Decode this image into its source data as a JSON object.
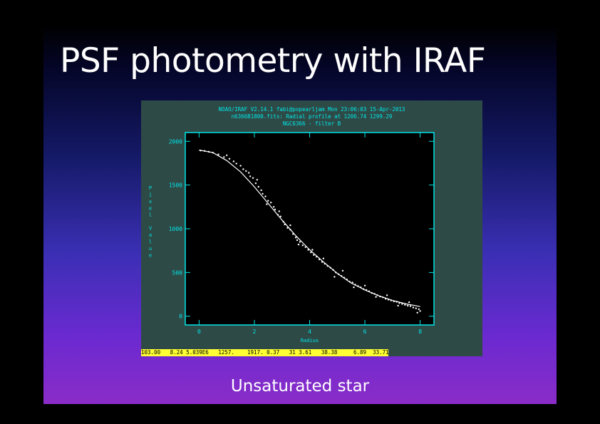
{
  "slide": {
    "title": "PSF photometry with IRAF",
    "caption": "Unsaturated star"
  },
  "iraf": {
    "header_line1": "NOAO/IRAF V2.14.1 fabi@popearljam Mon 23:06:03 15-Apr-2013",
    "header_line2": "n6366B1800.fits: Radial profile at 1206.74 1299.29",
    "header_line3": "NGC6366 - filter B",
    "status_line": "103.00   8.24 5.039E6   1257.    1917. 0.37   31 3.61   38.38     6.89  33.71"
  },
  "colors": {
    "axis": "#00e5e5",
    "fit_line": "#ffffff",
    "points": "#ffffff",
    "plot_background": "#000000",
    "panel_background": "#2e4a47",
    "status_background": "#ffff33"
  },
  "chart_data": {
    "type": "scatter",
    "title": "",
    "xlabel": "Radius",
    "ylabel": "Pixel Value",
    "xlim": [
      -0.5,
      8.5
    ],
    "ylim": [
      -100,
      2100
    ],
    "xticks": [
      0,
      2,
      4,
      6,
      8
    ],
    "yticks": [
      0,
      500,
      1000,
      1500,
      2000
    ],
    "x_tick_labels": [
      "0",
      "2",
      "4",
      "6",
      "8"
    ],
    "y_tick_labels": [
      "0",
      "500",
      "1000",
      "1500",
      "2000"
    ],
    "grid": false,
    "series": [
      {
        "kind": "points",
        "values": [
          [
            0.05,
            1895
          ],
          [
            0.2,
            1890
          ],
          [
            0.35,
            1880
          ],
          [
            0.5,
            1870
          ],
          [
            0.7,
            1850
          ],
          [
            0.9,
            1820
          ],
          [
            1.0,
            1840
          ],
          [
            1.1,
            1800
          ],
          [
            1.25,
            1770
          ],
          [
            1.35,
            1745
          ],
          [
            1.5,
            1720
          ],
          [
            1.6,
            1680
          ],
          [
            1.7,
            1660
          ],
          [
            1.8,
            1640
          ],
          [
            1.85,
            1600
          ],
          [
            1.95,
            1580
          ],
          [
            2.05,
            1520
          ],
          [
            2.15,
            1480
          ],
          [
            2.25,
            1440
          ],
          [
            2.3,
            1400
          ],
          [
            2.4,
            1370
          ],
          [
            2.5,
            1320
          ],
          [
            2.6,
            1300
          ],
          [
            2.7,
            1250
          ],
          [
            2.75,
            1220
          ],
          [
            2.85,
            1160
          ],
          [
            2.95,
            1140
          ],
          [
            3.05,
            1080
          ],
          [
            3.1,
            1050
          ],
          [
            3.2,
            1010
          ],
          [
            3.3,
            990
          ],
          [
            3.4,
            940
          ],
          [
            3.5,
            900
          ],
          [
            3.55,
            870
          ],
          [
            3.65,
            850
          ],
          [
            3.75,
            810
          ],
          [
            3.85,
            790
          ],
          [
            3.95,
            760
          ],
          [
            4.05,
            730
          ],
          [
            4.15,
            700
          ],
          [
            4.25,
            680
          ],
          [
            4.35,
            650
          ],
          [
            4.45,
            620
          ],
          [
            4.55,
            600
          ],
          [
            4.65,
            575
          ],
          [
            4.75,
            555
          ],
          [
            4.85,
            530
          ],
          [
            4.95,
            500
          ],
          [
            5.05,
            480
          ],
          [
            5.15,
            460
          ],
          [
            5.25,
            440
          ],
          [
            5.35,
            420
          ],
          [
            5.45,
            395
          ],
          [
            5.55,
            385
          ],
          [
            5.65,
            360
          ],
          [
            5.75,
            345
          ],
          [
            5.85,
            330
          ],
          [
            5.95,
            310
          ],
          [
            6.05,
            300
          ],
          [
            6.15,
            285
          ],
          [
            6.25,
            265
          ],
          [
            6.35,
            255
          ],
          [
            6.45,
            240
          ],
          [
            6.55,
            225
          ],
          [
            6.65,
            215
          ],
          [
            6.75,
            200
          ],
          [
            6.85,
            190
          ],
          [
            6.95,
            180
          ],
          [
            7.05,
            170
          ],
          [
            7.15,
            165
          ],
          [
            7.25,
            150
          ],
          [
            7.35,
            140
          ],
          [
            7.45,
            130
          ],
          [
            7.55,
            120
          ],
          [
            7.65,
            115
          ],
          [
            7.75,
            100
          ],
          [
            7.85,
            90
          ],
          [
            7.95,
            80
          ],
          [
            8.0,
            60
          ],
          [
            2.1,
            1560
          ],
          [
            2.45,
            1280
          ],
          [
            2.9,
            1200
          ],
          [
            3.3,
            1040
          ],
          [
            3.6,
            820
          ],
          [
            4.1,
            760
          ],
          [
            4.5,
            660
          ],
          [
            4.9,
            450
          ],
          [
            5.2,
            520
          ],
          [
            5.6,
            330
          ],
          [
            6.0,
            350
          ],
          [
            6.4,
            220
          ],
          [
            6.8,
            240
          ],
          [
            7.2,
            120
          ],
          [
            7.6,
            160
          ],
          [
            7.9,
            40
          ]
        ]
      },
      {
        "kind": "fit",
        "values": [
          [
            0.0,
            1900
          ],
          [
            0.5,
            1870
          ],
          [
            1.0,
            1780
          ],
          [
            1.5,
            1650
          ],
          [
            2.0,
            1480
          ],
          [
            2.5,
            1290
          ],
          [
            3.0,
            1100
          ],
          [
            3.5,
            920
          ],
          [
            4.0,
            760
          ],
          [
            4.5,
            620
          ],
          [
            5.0,
            490
          ],
          [
            5.5,
            380
          ],
          [
            6.0,
            300
          ],
          [
            6.5,
            235
          ],
          [
            7.0,
            180
          ],
          [
            7.5,
            140
          ],
          [
            8.0,
            110
          ]
        ]
      }
    ]
  }
}
